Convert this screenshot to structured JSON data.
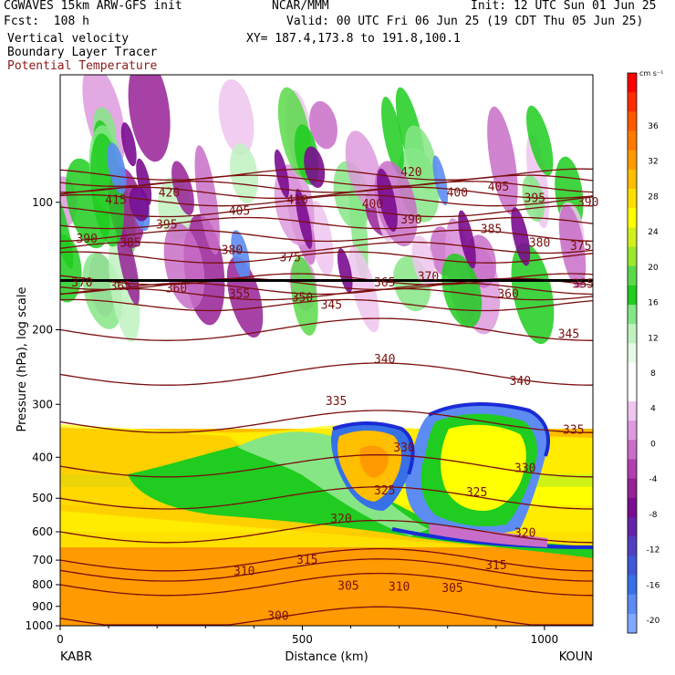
{
  "header": {
    "model": "CGWAVES 15km ARW-GFS init",
    "fcst": "Fcst:  108 h",
    "field1": "Vertical velocity",
    "field2": "Boundary Layer Tracer",
    "field3": "Potential Temperature",
    "center": "NCAR/MMM",
    "init": "Init: 12 UTC Sun 01 Jun 25",
    "valid": "Valid: 00 UTC Fri 06 Jun 25 (19 CDT Thu 05 Jun 25)",
    "xy": "XY= 187.4,173.8 to 191.8,100.1"
  },
  "colors": {
    "theta_contour": "#7a0f0f",
    "tracer_outline": "#1a2bd6"
  },
  "chart_data": {
    "type": "heatmap",
    "title": "Vertical velocity / Boundary Layer Tracer / Potential Temperature",
    "xlabel": "Distance (km)",
    "ylabel": "Pressure (hPa), log scale",
    "x_range": [
      0,
      1100
    ],
    "y_range_hpa": [
      1000,
      50
    ],
    "y_scale": "log",
    "x_ticks": [
      0,
      500,
      1000
    ],
    "x_tick_labels": [
      "0",
      "500",
      "1000"
    ],
    "y_ticks": [
      100,
      200,
      300,
      400,
      500,
      600,
      700,
      800,
      900,
      1000
    ],
    "y_tick_labels": [
      "100",
      "200",
      "300",
      "400",
      "500",
      "600",
      "700",
      "800",
      "900",
      "1000"
    ],
    "endpoint_labels": {
      "left": "KABR",
      "right": "KOUN"
    },
    "colorbar": {
      "unit": "cm s⁻¹",
      "levels": [
        36,
        32,
        28,
        24,
        20,
        16,
        12,
        8,
        4,
        0,
        -4,
        -8,
        -12,
        -16,
        -20
      ],
      "labels": [
        "36",
        "32",
        "28",
        "24",
        "20",
        "16",
        "12",
        "8",
        "4",
        "0",
        "-4",
        "-8",
        "-12",
        "-16",
        "-20"
      ],
      "colors": [
        "#ff0000",
        "#ff2d00",
        "#ff5a00",
        "#ff7a00",
        "#ff9a00",
        "#ffbe00",
        "#ffe000",
        "#ffff00",
        "#d2f020",
        "#9be830",
        "#5ad94a",
        "#1fcc1f",
        "#86e686",
        "#bff2bf",
        "#e6fae6",
        "#ffffff",
        "#ffffff",
        "#efc6ef",
        "#dd9add",
        "#c86ec8",
        "#b040b0",
        "#962096",
        "#7a0c90",
        "#6424a8",
        "#5040c0",
        "#4058d6",
        "#3870e6",
        "#5c8cf2",
        "#80a8ff"
      ]
    },
    "theta_contours": [
      {
        "value": 300,
        "label": "300"
      },
      {
        "value": 305,
        "label": "305"
      },
      {
        "value": 310,
        "label": "310"
      },
      {
        "value": 315,
        "label": "315"
      },
      {
        "value": 320,
        "label": "320"
      },
      {
        "value": 325,
        "label": "325"
      },
      {
        "value": 330,
        "label": "330"
      },
      {
        "value": 335,
        "label": "335"
      },
      {
        "value": 340,
        "label": "340"
      },
      {
        "value": 345,
        "label": "345"
      },
      {
        "value": 350,
        "label": "350"
      },
      {
        "value": 355,
        "label": "355"
      },
      {
        "value": 360,
        "label": "360"
      },
      {
        "value": 365,
        "label": "365"
      },
      {
        "value": 370,
        "label": "370"
      },
      {
        "value": 375,
        "label": "375"
      },
      {
        "value": 380,
        "label": "380"
      },
      {
        "value": 385,
        "label": "385"
      },
      {
        "value": 390,
        "label": "390"
      },
      {
        "value": 395,
        "label": "395"
      },
      {
        "value": 400,
        "label": "400"
      },
      {
        "value": 405,
        "label": "405"
      },
      {
        "value": 410,
        "label": "410"
      },
      {
        "value": 415,
        "label": "415"
      },
      {
        "value": 420,
        "label": "420"
      }
    ],
    "theta_label_positions": [
      {
        "label": "300",
        "x_km": 450,
        "p": 950
      },
      {
        "label": "305",
        "x_km": 595,
        "p": 805
      },
      {
        "label": "310",
        "x_km": 380,
        "p": 745
      },
      {
        "label": "310",
        "x_km": 700,
        "p": 810
      },
      {
        "label": "305",
        "x_km": 810,
        "p": 815
      },
      {
        "label": "315",
        "x_km": 510,
        "p": 700
      },
      {
        "label": "315",
        "x_km": 900,
        "p": 720
      },
      {
        "label": "320",
        "x_km": 580,
        "p": 560
      },
      {
        "label": "320",
        "x_km": 960,
        "p": 605
      },
      {
        "label": "325",
        "x_km": 670,
        "p": 480
      },
      {
        "label": "325",
        "x_km": 860,
        "p": 485
      },
      {
        "label": "330",
        "x_km": 710,
        "p": 380
      },
      {
        "label": "330",
        "x_km": 960,
        "p": 425
      },
      {
        "label": "335",
        "x_km": 570,
        "p": 295
      },
      {
        "label": "335",
        "x_km": 1060,
        "p": 345
      },
      {
        "label": "340",
        "x_km": 670,
        "p": 235
      },
      {
        "label": "340",
        "x_km": 950,
        "p": 265
      },
      {
        "label": "345",
        "x_km": 560,
        "p": 175
      },
      {
        "label": "345",
        "x_km": 1050,
        "p": 205
      },
      {
        "label": "350",
        "x_km": 500,
        "p": 168
      },
      {
        "label": "355",
        "x_km": 370,
        "p": 165
      },
      {
        "label": "355",
        "x_km": 1080,
        "p": 156
      },
      {
        "label": "360",
        "x_km": 240,
        "p": 160
      },
      {
        "label": "360",
        "x_km": 925,
        "p": 165
      },
      {
        "label": "365",
        "x_km": 125,
        "p": 158
      },
      {
        "label": "365",
        "x_km": 670,
        "p": 155
      },
      {
        "label": "370",
        "x_km": 45,
        "p": 155
      },
      {
        "label": "370",
        "x_km": 760,
        "p": 150
      },
      {
        "label": "375",
        "x_km": 475,
        "p": 135
      },
      {
        "label": "375",
        "x_km": 1075,
        "p": 127
      },
      {
        "label": "380",
        "x_km": 355,
        "p": 130
      },
      {
        "label": "380",
        "x_km": 990,
        "p": 125
      },
      {
        "label": "385",
        "x_km": 145,
        "p": 125
      },
      {
        "label": "385",
        "x_km": 890,
        "p": 116
      },
      {
        "label": "390",
        "x_km": 55,
        "p": 122
      },
      {
        "label": "390",
        "x_km": 725,
        "p": 110
      },
      {
        "label": "390",
        "x_km": 1090,
        "p": 100
      },
      {
        "label": "395",
        "x_km": 220,
        "p": 113
      },
      {
        "label": "395",
        "x_km": 980,
        "p": 98
      },
      {
        "label": "400",
        "x_km": 645,
        "p": 101
      },
      {
        "label": "400",
        "x_km": 820,
        "p": 95
      },
      {
        "label": "405",
        "x_km": 370,
        "p": 105
      },
      {
        "label": "405",
        "x_km": 905,
        "p": 92
      },
      {
        "label": "410",
        "x_km": 490,
        "p": 99
      },
      {
        "label": "415",
        "x_km": 115,
        "p": 99
      },
      {
        "label": "420",
        "x_km": 225,
        "p": 95
      },
      {
        "label": "420",
        "x_km": 725,
        "p": 85
      }
    ],
    "bl_tracer_regions": [
      {
        "x_km": [
          0,
          1100
        ],
        "p": [
          200,
          1000
        ],
        "note": "boundary layer tracer below ~200 hPa"
      },
      {
        "x_km": [
          760,
          1020
        ],
        "p": [
          170,
          470
        ],
        "note": "deep tracer plume (storm)"
      },
      {
        "x_km": [
          560,
          730
        ],
        "p": [
          185,
          430
        ],
        "note": "tracer plume"
      }
    ],
    "grid": false,
    "legend": "right"
  }
}
